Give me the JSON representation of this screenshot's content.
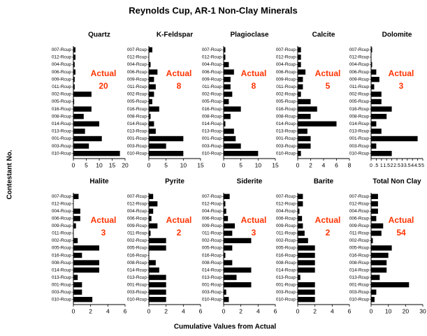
{
  "title": "Reynolds Cup, AR-1 Non-Clay Minerals",
  "ylabel": "Contestant No.",
  "xlabel": "Cumulative Values  from Actual",
  "categories": [
    "007-Rcup",
    "012-Rcup",
    "004-Rcup",
    "006-Rcup",
    "009-Rcup",
    "011-Rcup",
    "002-Rcup",
    "005-Rcup",
    "016-Rcup",
    "008-Rcup",
    "014-Rcup",
    "013-Rcup",
    "001-Rcup",
    "003-Rcup",
    "010-Rcup"
  ],
  "chart_data": [
    {
      "type": "bar",
      "title": "Quartz",
      "annotation": [
        "Actual",
        "20"
      ],
      "color": "#000000",
      "annotation_color": "#ff3300",
      "values": [
        0.8,
        0.8,
        0.5,
        0.8,
        0.5,
        0.5,
        7,
        0.3,
        7,
        4,
        10,
        4.5,
        11,
        6,
        18
      ],
      "xlim": [
        0,
        20
      ],
      "xticks": [
        0,
        5,
        10,
        15,
        20
      ]
    },
    {
      "type": "bar",
      "title": "K-Feldspar",
      "annotation": [
        "Actual",
        "8"
      ],
      "color": "#000000",
      "annotation_color": "#ff3300",
      "values": [
        1,
        0,
        0.5,
        2.5,
        1.5,
        2,
        1.5,
        1,
        3,
        0.5,
        1.5,
        2,
        10,
        5,
        10
      ],
      "xlim": [
        0,
        15
      ],
      "xticks": [
        0,
        5,
        10,
        15
      ]
    },
    {
      "type": "bar",
      "title": "Plagioclase",
      "annotation": [
        "Actual",
        "8"
      ],
      "color": "#000000",
      "annotation_color": "#ff3300",
      "values": [
        0.5,
        0.5,
        1.5,
        3,
        2,
        2,
        2.5,
        1.5,
        5,
        2,
        0.5,
        3,
        3.5,
        5,
        10
      ],
      "xlim": [
        0,
        15
      ],
      "xticks": [
        0,
        5,
        10,
        15
      ]
    },
    {
      "type": "bar",
      "title": "Calcite",
      "annotation": [
        "Actual",
        "5"
      ],
      "color": "#000000",
      "annotation_color": "#ff3300",
      "values": [
        0.5,
        0.5,
        0.5,
        1.2,
        0.8,
        0.8,
        0.5,
        2,
        3,
        2,
        6,
        1.5,
        2,
        2,
        0.5
      ],
      "xlim": [
        0,
        8
      ],
      "xticks": [
        0,
        2,
        4,
        6,
        8
      ]
    },
    {
      "type": "bar",
      "title": "Dolomite",
      "annotation": [
        "Actual",
        "3"
      ],
      "color": "#000000",
      "annotation_color": "#ff3300",
      "values": [
        0.1,
        0,
        0.1,
        0.5,
        0.8,
        0.3,
        1,
        1,
        2,
        1.5,
        0.5,
        1,
        4.5,
        0.5,
        2
      ],
      "xlim": [
        0,
        5
      ],
      "xticks": [
        0,
        {
          "value": 0.5,
          "label": ".5"
        },
        1,
        1.5,
        2,
        2.5,
        3,
        3.5,
        4,
        4.5,
        5
      ]
    },
    {
      "type": "bar",
      "title": "Halite",
      "annotation": [
        "Actual",
        "3"
      ],
      "color": "#000000",
      "annotation_color": "#ff3300",
      "values": [
        0.6,
        0,
        0.8,
        0.8,
        0.3,
        0,
        0.5,
        3,
        1,
        3,
        3,
        0.5,
        1,
        1,
        2.2
      ],
      "xlim": [
        0,
        6
      ],
      "xticks": [
        0,
        2,
        4,
        6
      ]
    },
    {
      "type": "bar",
      "title": "Pyrite",
      "annotation": [
        "Actual",
        "2"
      ],
      "color": "#000000",
      "annotation_color": "#ff3300",
      "values": [
        0.5,
        1,
        0.5,
        0.3,
        1,
        0.2,
        2,
        2,
        0,
        0.8,
        1.2,
        2,
        2,
        2,
        2
      ],
      "xlim": [
        0,
        6
      ],
      "xticks": [
        0,
        2,
        4,
        6
      ]
    },
    {
      "type": "bar",
      "title": "Siderite",
      "annotation": [
        "Actual",
        "3"
      ],
      "color": "#000000",
      "annotation_color": "#ff3300",
      "values": [
        0.7,
        0.2,
        0.3,
        0.5,
        1.3,
        1,
        3.2,
        1,
        0.2,
        1,
        3.2,
        1.5,
        3.2,
        0.3,
        0.6
      ],
      "xlim": [
        0,
        6
      ],
      "xticks": [
        0,
        2,
        4,
        6
      ]
    },
    {
      "type": "bar",
      "title": "Barite",
      "annotation": [
        "Actual",
        "2"
      ],
      "color": "#000000",
      "annotation_color": "#ff3300",
      "values": [
        0.6,
        0.6,
        0.2,
        0.5,
        0.6,
        0.8,
        1.2,
        2,
        2,
        2,
        2,
        0.3,
        2,
        2,
        2
      ],
      "xlim": [
        0,
        6
      ],
      "xticks": [
        0,
        2,
        4,
        6
      ]
    },
    {
      "type": "bar",
      "title": "Total Non Clay",
      "annotation": [
        "Actual",
        "54"
      ],
      "color": "#000000",
      "annotation_color": "#ff3300",
      "values": [
        4,
        4,
        4,
        3,
        7,
        6,
        1,
        12,
        10,
        9,
        9,
        5,
        22,
        3,
        2
      ],
      "xlim": [
        0,
        30
      ],
      "xticks": [
        0,
        10,
        20,
        30
      ]
    }
  ]
}
